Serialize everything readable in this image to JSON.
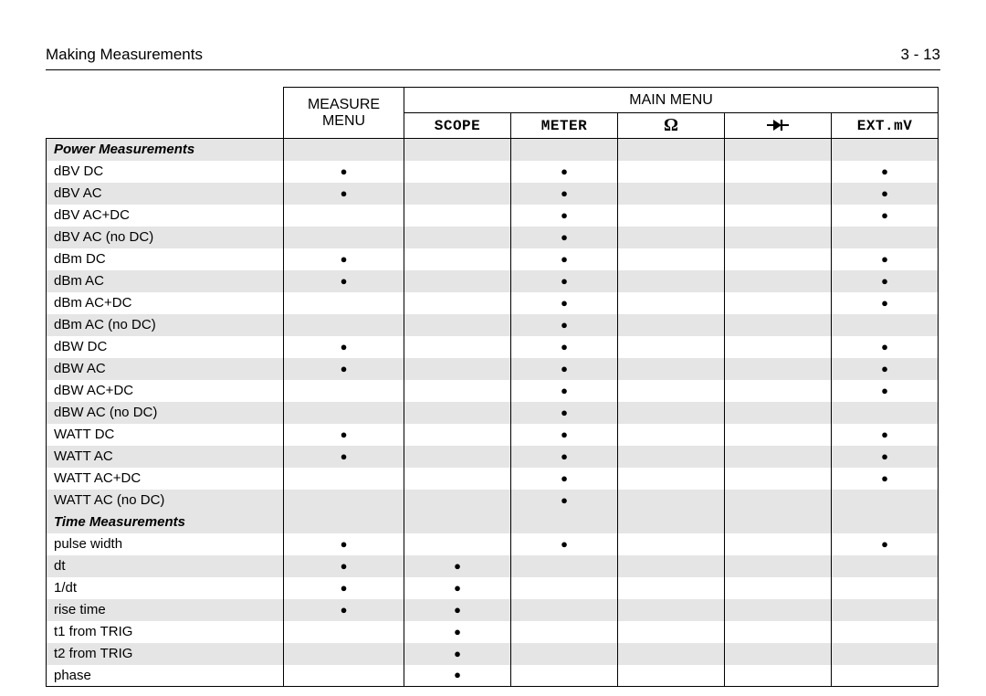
{
  "header": {
    "left": "Making Measurements",
    "right": "3 - 13"
  },
  "table": {
    "headers": {
      "measure_menu_line1": "MEASURE",
      "measure_menu_line2": "MENU",
      "main_menu": "MAIN MENU",
      "scope": "SCOPE",
      "meter": "METER",
      "ohm": "Ω",
      "ext_mv": "EXT.mV"
    },
    "dot": "●",
    "colors": {
      "shade": "#e5e5e5",
      "border": "#000000",
      "text": "#000000",
      "bg": "#ffffff"
    },
    "sections": [
      {
        "title": "Power Measurements",
        "shade": true,
        "rows": [
          {
            "label": "dBV DC",
            "shade": false,
            "dots": [
              1,
              0,
              1,
              0,
              0,
              1
            ]
          },
          {
            "label": "dBV AC",
            "shade": true,
            "dots": [
              1,
              0,
              1,
              0,
              0,
              1
            ]
          },
          {
            "label": "dBV AC+DC",
            "shade": false,
            "dots": [
              0,
              0,
              1,
              0,
              0,
              1
            ]
          },
          {
            "label": "dBV AC (no DC)",
            "shade": true,
            "dots": [
              0,
              0,
              1,
              0,
              0,
              0
            ]
          },
          {
            "label": "dBm DC",
            "shade": false,
            "dots": [
              1,
              0,
              1,
              0,
              0,
              1
            ]
          },
          {
            "label": "dBm AC",
            "shade": true,
            "dots": [
              1,
              0,
              1,
              0,
              0,
              1
            ]
          },
          {
            "label": "dBm AC+DC",
            "shade": false,
            "dots": [
              0,
              0,
              1,
              0,
              0,
              1
            ]
          },
          {
            "label": "dBm AC (no DC)",
            "shade": true,
            "dots": [
              0,
              0,
              1,
              0,
              0,
              0
            ]
          },
          {
            "label": "dBW DC",
            "shade": false,
            "dots": [
              1,
              0,
              1,
              0,
              0,
              1
            ]
          },
          {
            "label": "dBW AC",
            "shade": true,
            "dots": [
              1,
              0,
              1,
              0,
              0,
              1
            ]
          },
          {
            "label": "dBW AC+DC",
            "shade": false,
            "dots": [
              0,
              0,
              1,
              0,
              0,
              1
            ]
          },
          {
            "label": "dBW AC (no DC)",
            "shade": true,
            "dots": [
              0,
              0,
              1,
              0,
              0,
              0
            ]
          },
          {
            "label": "WATT DC",
            "shade": false,
            "dots": [
              1,
              0,
              1,
              0,
              0,
              1
            ]
          },
          {
            "label": "WATT AC",
            "shade": true,
            "dots": [
              1,
              0,
              1,
              0,
              0,
              1
            ]
          },
          {
            "label": "WATT AC+DC",
            "shade": false,
            "dots": [
              0,
              0,
              1,
              0,
              0,
              1
            ]
          },
          {
            "label": "WATT AC (no DC)",
            "shade": true,
            "dots": [
              0,
              0,
              1,
              0,
              0,
              0
            ]
          }
        ]
      },
      {
        "title": "Time Measurements",
        "shade": true,
        "rows": [
          {
            "label": "pulse width",
            "shade": false,
            "dots": [
              1,
              0,
              1,
              0,
              0,
              1
            ]
          },
          {
            "label": "dt",
            "shade": true,
            "dots": [
              1,
              1,
              0,
              0,
              0,
              0
            ]
          },
          {
            "label": "1/dt",
            "shade": false,
            "dots": [
              1,
              1,
              0,
              0,
              0,
              0
            ]
          },
          {
            "label": "rise time",
            "shade": true,
            "dots": [
              1,
              1,
              0,
              0,
              0,
              0
            ]
          },
          {
            "label": "t1 from TRIG",
            "shade": false,
            "dots": [
              0,
              1,
              0,
              0,
              0,
              0
            ]
          },
          {
            "label": "t2 from TRIG",
            "shade": true,
            "dots": [
              0,
              1,
              0,
              0,
              0,
              0
            ]
          },
          {
            "label": "phase",
            "shade": false,
            "dots": [
              0,
              1,
              0,
              0,
              0,
              0
            ]
          }
        ]
      }
    ]
  }
}
